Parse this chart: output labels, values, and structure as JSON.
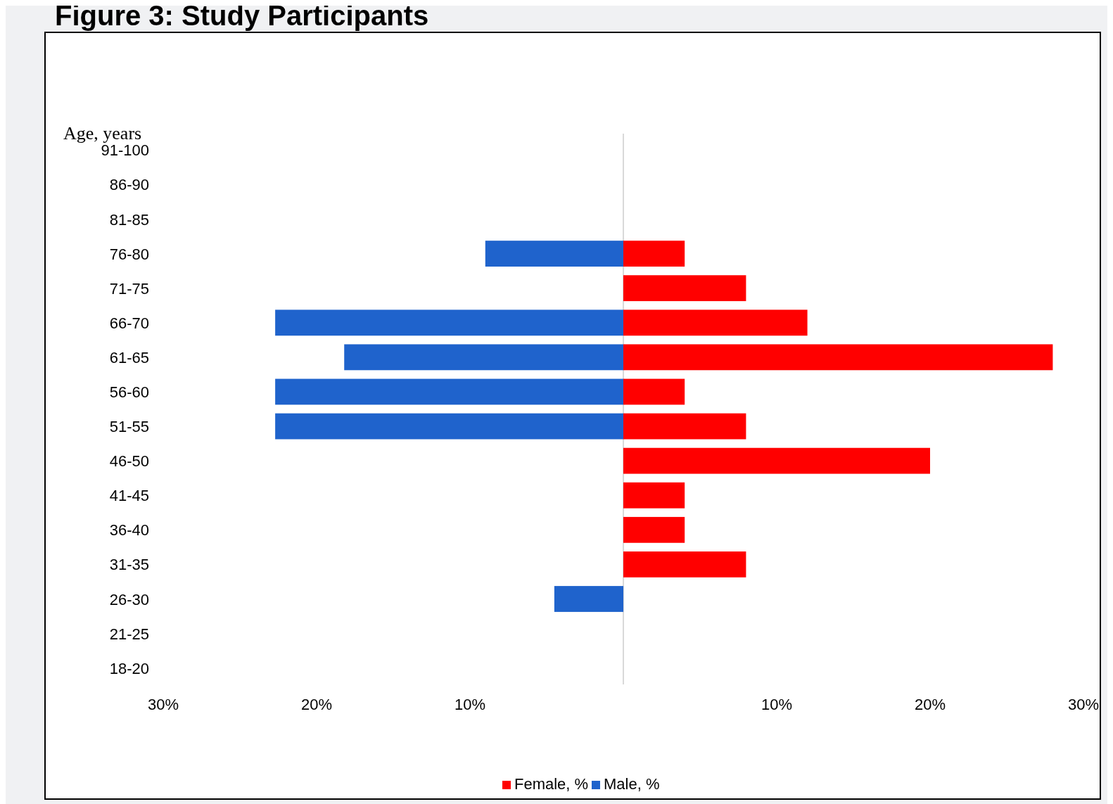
{
  "chart_data": {
    "type": "bar",
    "orientation": "horizontal",
    "title": "Figure 3: Study Participants",
    "ylabel": "Age, years",
    "categories": [
      "91-100",
      "86-90",
      "81-85",
      "76-80",
      "71-75",
      "66-70",
      "61-65",
      "56-60",
      "51-55",
      "46-50",
      "41-45",
      "36-40",
      "31-35",
      "26-30",
      "21-25",
      "18-20"
    ],
    "series": [
      {
        "name": "Female, %",
        "color": "#ff0000",
        "values": [
          null,
          null,
          null,
          4,
          8,
          12,
          28,
          4,
          8,
          20,
          4,
          4,
          8,
          null,
          null,
          null
        ]
      },
      {
        "name": "Male, %",
        "color": "#1f63cc",
        "values": [
          null,
          null,
          null,
          -9,
          null,
          -22.7,
          -18.2,
          -22.7,
          -22.7,
          null,
          null,
          null,
          null,
          -4.5,
          null,
          null
        ]
      }
    ],
    "xlim": [
      -30,
      30
    ],
    "xticks": [
      {
        "value": -30,
        "label": "30%"
      },
      {
        "value": -20,
        "label": "20%"
      },
      {
        "value": -10,
        "label": "10%"
      },
      {
        "value": 10,
        "label": "10%"
      },
      {
        "value": 20,
        "label": "20%"
      },
      {
        "value": 30,
        "label": "30%"
      }
    ],
    "ref_lines": [
      {
        "axis": "x",
        "value": 0,
        "color": "#d9d9d9"
      }
    ],
    "grid": false,
    "legend": "bottom"
  }
}
